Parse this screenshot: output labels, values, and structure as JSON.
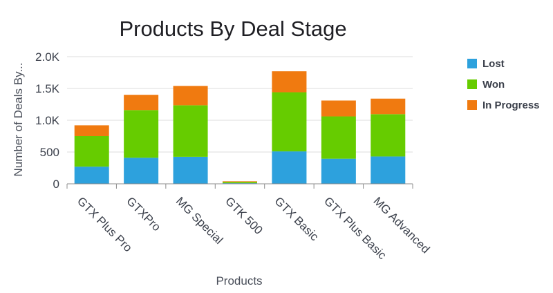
{
  "chart_data": {
    "type": "bar",
    "stacked": true,
    "title": "Products By Deal Stage",
    "xlabel": "Products",
    "ylabel": "Number of Deals By...",
    "ylim": [
      0,
      2000
    ],
    "yticks": [
      0,
      500,
      1000,
      1500,
      2000
    ],
    "ytick_labels": [
      "0",
      "500",
      "1.0K",
      "1.5K",
      "2.0K"
    ],
    "grid": true,
    "legend_position": "top-right",
    "categories": [
      "GTX Plus Pro",
      "GTXPro",
      "MG Special",
      "GTK 500",
      "GTX Basic",
      "GTX Plus Basic",
      "MG Advanced"
    ],
    "series": [
      {
        "name": "Lost",
        "color": "#2da1dd",
        "values": [
          270,
          410,
          425,
          10,
          510,
          395,
          430
        ]
      },
      {
        "name": "Won",
        "color": "#66cc00",
        "values": [
          480,
          750,
          810,
          20,
          930,
          665,
          665
        ]
      },
      {
        "name": "In Progress",
        "color": "#f07a10",
        "values": [
          170,
          240,
          305,
          10,
          330,
          250,
          245
        ]
      }
    ]
  }
}
